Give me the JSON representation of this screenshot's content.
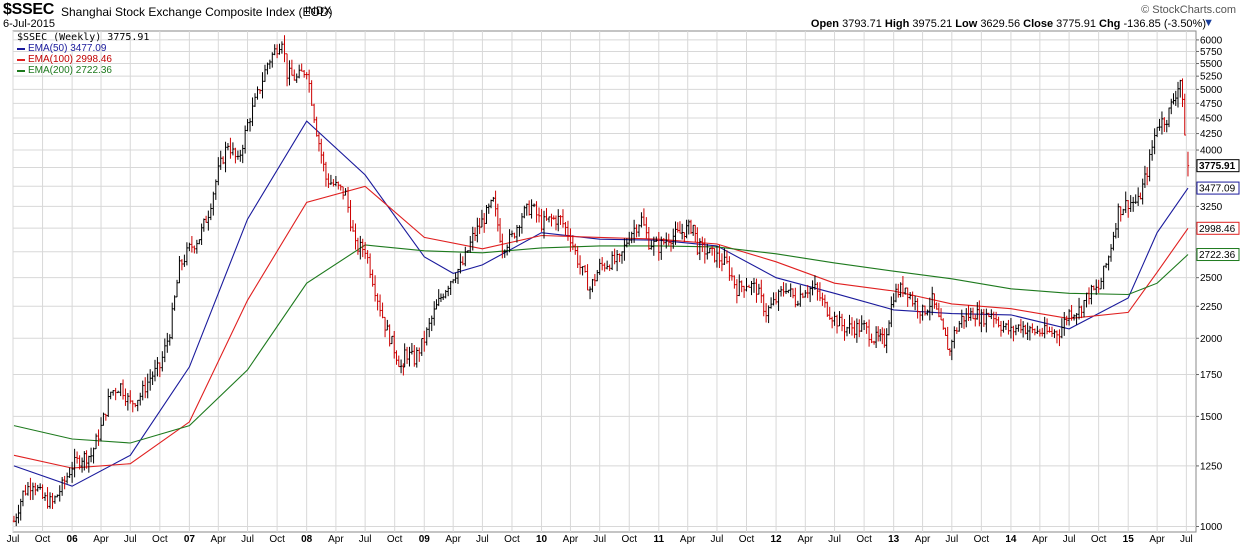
{
  "header": {
    "symbol": "$SSEC",
    "full_name": "Shanghai Stock Exchange Composite Index (EOD)",
    "instrument_type": "INDX",
    "date": "6-Jul-2015",
    "brand": "© StockCharts.com",
    "open_label": "Open",
    "open_value": "3793.71",
    "high_label": "High",
    "high_value": "3975.21",
    "low_label": "Low",
    "low_value": "3629.56",
    "close_label": "Close",
    "close_value": "3775.91",
    "chg_label": "Chg",
    "chg_value": "-136.85 (-3.50%)",
    "chg_arrow": "▼"
  },
  "legend": {
    "main": "$SSEC (Weekly) 3775.91",
    "ema50": "EMA(50) 3477.09",
    "ema100": "EMA(100) 2998.46",
    "ema200": "EMA(200) 2722.36"
  },
  "colors": {
    "up": "#000000",
    "down": "#cc0000",
    "ema50": "#1a1a9c",
    "ema100": "#e02020",
    "ema200": "#1e7a1e",
    "grid": "#d8d8d8",
    "frame": "#888888"
  },
  "chart_data": {
    "type": "line",
    "scale": "log",
    "bar_style": "ohlc-weekly",
    "grid": true,
    "legend_position": "top-left",
    "ylim": [
      980,
      6200
    ],
    "xlim": [
      "2005-07-01",
      "2015-07-31"
    ],
    "y_ticks": [
      1000,
      1250,
      1500,
      1750,
      2000,
      2250,
      2500,
      2750,
      3000,
      3250,
      3500,
      3750,
      4000,
      4250,
      4500,
      4750,
      5000,
      5250,
      5500,
      5750,
      6000
    ],
    "y_tick_labels": [
      "1000",
      "1250",
      "1500",
      "1750",
      "2000",
      "2250",
      "2500",
      "",
      "",
      "3250",
      "",
      "",
      "4000",
      "4250",
      "4500",
      "4750",
      "5000",
      "5250",
      "5500",
      "5750",
      "6000"
    ],
    "x_ticks": [
      {
        "date": "2005-07-01",
        "label": "Jul",
        "year": false
      },
      {
        "date": "2005-10-01",
        "label": "Oct",
        "year": false
      },
      {
        "date": "2006-01-01",
        "label": "06",
        "year": true
      },
      {
        "date": "2006-04-01",
        "label": "Apr",
        "year": false
      },
      {
        "date": "2006-07-01",
        "label": "Jul",
        "year": false
      },
      {
        "date": "2006-10-01",
        "label": "Oct",
        "year": false
      },
      {
        "date": "2007-01-01",
        "label": "07",
        "year": true
      },
      {
        "date": "2007-04-01",
        "label": "Apr",
        "year": false
      },
      {
        "date": "2007-07-01",
        "label": "Jul",
        "year": false
      },
      {
        "date": "2007-10-01",
        "label": "Oct",
        "year": false
      },
      {
        "date": "2008-01-01",
        "label": "08",
        "year": true
      },
      {
        "date": "2008-04-01",
        "label": "Apr",
        "year": false
      },
      {
        "date": "2008-07-01",
        "label": "Jul",
        "year": false
      },
      {
        "date": "2008-10-01",
        "label": "Oct",
        "year": false
      },
      {
        "date": "2009-01-01",
        "label": "09",
        "year": true
      },
      {
        "date": "2009-04-01",
        "label": "Apr",
        "year": false
      },
      {
        "date": "2009-07-01",
        "label": "Jul",
        "year": false
      },
      {
        "date": "2009-10-01",
        "label": "Oct",
        "year": false
      },
      {
        "date": "2010-01-01",
        "label": "10",
        "year": true
      },
      {
        "date": "2010-04-01",
        "label": "Apr",
        "year": false
      },
      {
        "date": "2010-07-01",
        "label": "Jul",
        "year": false
      },
      {
        "date": "2010-10-01",
        "label": "Oct",
        "year": false
      },
      {
        "date": "2011-01-01",
        "label": "11",
        "year": true
      },
      {
        "date": "2011-04-01",
        "label": "Apr",
        "year": false
      },
      {
        "date": "2011-07-01",
        "label": "Jul",
        "year": false
      },
      {
        "date": "2011-10-01",
        "label": "Oct",
        "year": false
      },
      {
        "date": "2012-01-01",
        "label": "12",
        "year": true
      },
      {
        "date": "2012-04-01",
        "label": "Apr",
        "year": false
      },
      {
        "date": "2012-07-01",
        "label": "Jul",
        "year": false
      },
      {
        "date": "2012-10-01",
        "label": "Oct",
        "year": false
      },
      {
        "date": "2013-01-01",
        "label": "13",
        "year": true
      },
      {
        "date": "2013-04-01",
        "label": "Apr",
        "year": false
      },
      {
        "date": "2013-07-01",
        "label": "Jul",
        "year": false
      },
      {
        "date": "2013-10-01",
        "label": "Oct",
        "year": false
      },
      {
        "date": "2014-01-01",
        "label": "14",
        "year": true
      },
      {
        "date": "2014-04-01",
        "label": "Apr",
        "year": false
      },
      {
        "date": "2014-07-01",
        "label": "Jul",
        "year": false
      },
      {
        "date": "2014-10-01",
        "label": "Oct",
        "year": false
      },
      {
        "date": "2015-01-01",
        "label": "15",
        "year": true
      },
      {
        "date": "2015-04-01",
        "label": "Apr",
        "year": false
      },
      {
        "date": "2015-07-01",
        "label": "Jul",
        "year": false
      }
    ],
    "price_labels": [
      {
        "value": 3775.91,
        "text": "3775.91"
      },
      {
        "value": 3477.09,
        "text": "3477.09"
      },
      {
        "value": 2998.46,
        "text": "2998.46"
      },
      {
        "value": 2722.36,
        "text": "2722.36"
      }
    ],
    "price": {
      "name": "$SSEC",
      "x": [
        "2005-07-04",
        "2005-08-01",
        "2005-09-01",
        "2005-10-01",
        "2005-11-01",
        "2005-12-01",
        "2006-01-01",
        "2006-02-01",
        "2006-03-01",
        "2006-04-01",
        "2006-05-01",
        "2006-06-01",
        "2006-07-01",
        "2006-08-01",
        "2006-09-01",
        "2006-10-01",
        "2006-11-01",
        "2006-12-01",
        "2007-01-01",
        "2007-02-01",
        "2007-03-01",
        "2007-04-01",
        "2007-05-01",
        "2007-06-01",
        "2007-07-01",
        "2007-08-01",
        "2007-09-01",
        "2007-10-16",
        "2007-11-01",
        "2007-12-01",
        "2008-01-01",
        "2008-02-01",
        "2008-03-01",
        "2008-04-01",
        "2008-05-01",
        "2008-06-01",
        "2008-07-01",
        "2008-08-01",
        "2008-09-01",
        "2008-10-28",
        "2008-11-01",
        "2008-12-01",
        "2009-01-01",
        "2009-02-01",
        "2009-03-01",
        "2009-04-01",
        "2009-05-01",
        "2009-06-01",
        "2009-08-04",
        "2009-09-01",
        "2009-10-01",
        "2009-11-01",
        "2009-12-01",
        "2010-01-01",
        "2010-02-01",
        "2010-03-01",
        "2010-04-01",
        "2010-05-01",
        "2010-06-01",
        "2010-07-01",
        "2010-08-01",
        "2010-09-01",
        "2010-10-01",
        "2010-11-08",
        "2010-12-01",
        "2011-01-01",
        "2011-02-01",
        "2011-03-01",
        "2011-04-18",
        "2011-05-01",
        "2011-06-01",
        "2011-07-01",
        "2011-08-01",
        "2011-09-01",
        "2011-10-01",
        "2011-11-01",
        "2011-12-01",
        "2012-01-01",
        "2012-02-01",
        "2012-03-01",
        "2012-04-01",
        "2012-05-01",
        "2012-06-01",
        "2012-07-01",
        "2012-08-01",
        "2012-09-01",
        "2012-10-01",
        "2012-11-01",
        "2012-12-03",
        "2013-01-01",
        "2013-02-06",
        "2013-03-01",
        "2013-04-01",
        "2013-05-01",
        "2013-06-25",
        "2013-07-01",
        "2013-08-01",
        "2013-09-12",
        "2013-10-01",
        "2013-11-01",
        "2013-12-01",
        "2014-01-01",
        "2014-02-01",
        "2014-03-01",
        "2014-04-01",
        "2014-05-01",
        "2014-06-01",
        "2014-07-01",
        "2014-08-01",
        "2014-09-01",
        "2014-10-01",
        "2014-11-01",
        "2014-12-01",
        "2015-01-01",
        "2015-02-01",
        "2015-03-01",
        "2015-04-01",
        "2015-05-01",
        "2015-06-12",
        "2015-06-26",
        "2015-07-06"
      ],
      "y": [
        1020,
        1130,
        1180,
        1110,
        1090,
        1160,
        1250,
        1290,
        1300,
        1440,
        1640,
        1680,
        1570,
        1620,
        1730,
        1800,
        2050,
        2600,
        2780,
        2900,
        3180,
        3700,
        4100,
        3820,
        4400,
        4900,
        5500,
        6030,
        5300,
        5200,
        5400,
        4300,
        3600,
        3500,
        3400,
        2800,
        2780,
        2400,
        2100,
        1760,
        1900,
        1850,
        1990,
        2200,
        2370,
        2520,
        2630,
        2900,
        3300,
        2800,
        2900,
        3150,
        3250,
        3050,
        3100,
        3100,
        2900,
        2600,
        2400,
        2600,
        2650,
        2660,
        2930,
        3100,
        2850,
        2800,
        2900,
        2930,
        3030,
        2800,
        2750,
        2700,
        2620,
        2400,
        2450,
        2400,
        2200,
        2300,
        2420,
        2300,
        2400,
        2400,
        2250,
        2150,
        2080,
        2080,
        2080,
        2000,
        1980,
        2350,
        2420,
        2300,
        2200,
        2300,
        1900,
        2000,
        2150,
        2200,
        2150,
        2200,
        2100,
        2050,
        2100,
        2050,
        2050,
        2040,
        2050,
        2200,
        2220,
        2360,
        2400,
        2700,
        3200,
        3300,
        3300,
        3700,
        4400,
        4500,
        5170,
        4300,
        3775.91
      ]
    },
    "series": [
      {
        "name": "EMA(50)",
        "x": [
          "2005-07-04",
          "2006-01-01",
          "2006-07-01",
          "2007-01-01",
          "2007-07-01",
          "2008-01-01",
          "2008-07-01",
          "2009-01-01",
          "2009-04-01",
          "2009-07-01",
          "2010-01-01",
          "2010-07-01",
          "2011-01-01",
          "2011-07-01",
          "2012-01-01",
          "2012-07-01",
          "2013-01-01",
          "2013-07-01",
          "2014-01-01",
          "2014-07-01",
          "2015-01-01",
          "2015-04-01",
          "2015-07-06"
        ],
        "y": [
          1250,
          1160,
          1300,
          1800,
          3100,
          4450,
          3650,
          2700,
          2540,
          2620,
          2950,
          2880,
          2870,
          2810,
          2500,
          2360,
          2220,
          2190,
          2180,
          2070,
          2320,
          2950,
          3477.09
        ]
      },
      {
        "name": "EMA(100)",
        "x": [
          "2005-07-04",
          "2006-01-01",
          "2006-07-01",
          "2007-01-01",
          "2007-07-01",
          "2008-01-01",
          "2008-07-01",
          "2009-01-01",
          "2009-07-01",
          "2010-01-01",
          "2010-07-01",
          "2011-01-01",
          "2011-07-01",
          "2012-01-01",
          "2012-07-01",
          "2013-01-01",
          "2013-07-01",
          "2014-01-01",
          "2014-07-01",
          "2015-01-01",
          "2015-04-01",
          "2015-07-06"
        ],
        "y": [
          1300,
          1240,
          1260,
          1470,
          2300,
          3300,
          3500,
          2900,
          2780,
          2920,
          2900,
          2880,
          2830,
          2650,
          2450,
          2380,
          2270,
          2230,
          2150,
          2200,
          2550,
          2998.46
        ]
      },
      {
        "name": "EMA(200)",
        "x": [
          "2005-07-04",
          "2006-01-01",
          "2006-07-01",
          "2007-01-01",
          "2007-07-01",
          "2008-01-01",
          "2008-07-01",
          "2009-01-01",
          "2009-07-01",
          "2010-01-01",
          "2010-07-01",
          "2011-01-01",
          "2011-07-01",
          "2012-01-01",
          "2012-07-01",
          "2013-01-01",
          "2013-07-01",
          "2014-01-01",
          "2014-07-01",
          "2015-01-01",
          "2015-04-01",
          "2015-07-06"
        ],
        "y": [
          1450,
          1380,
          1360,
          1450,
          1780,
          2450,
          2820,
          2760,
          2740,
          2790,
          2810,
          2810,
          2800,
          2730,
          2640,
          2560,
          2490,
          2400,
          2360,
          2350,
          2450,
          2722.36
        ]
      }
    ]
  }
}
